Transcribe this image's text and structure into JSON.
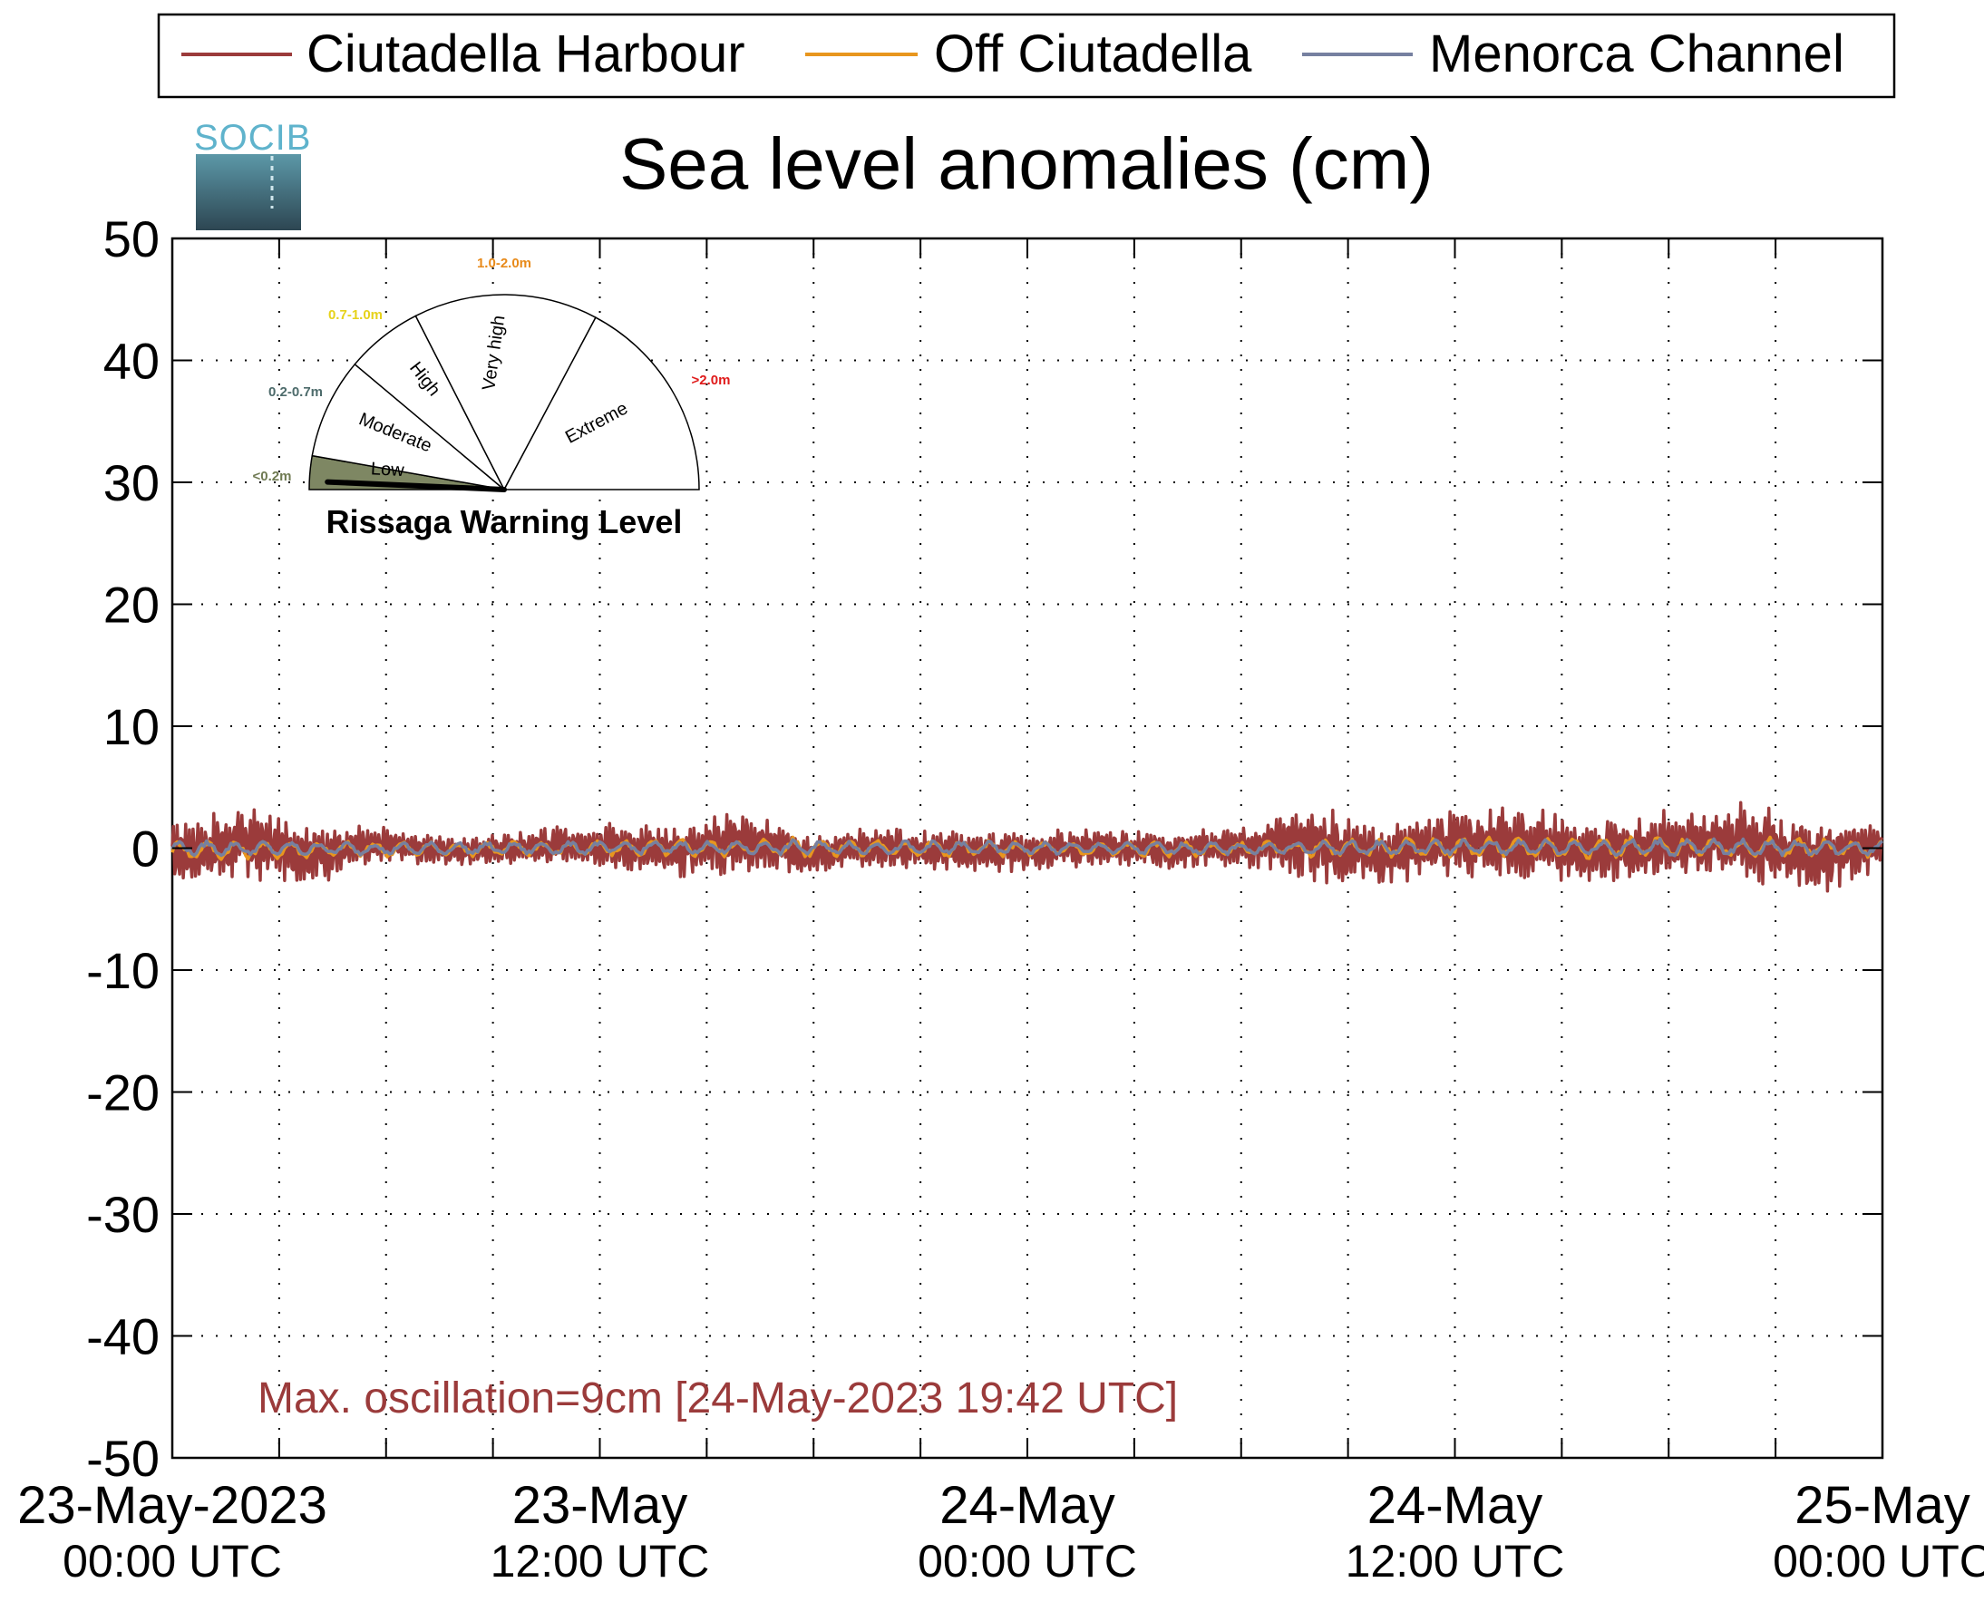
{
  "chart_data": {
    "type": "line",
    "title": "Sea level anomalies (cm)",
    "xlabel": "",
    "ylabel": "",
    "ylim": [
      -50,
      50
    ],
    "yticks": [
      50,
      40,
      30,
      20,
      10,
      0,
      -10,
      -20,
      -30,
      -40,
      -50
    ],
    "xlim": [
      "2023-05-23 00:00",
      "2023-05-25 00:00"
    ],
    "x_major_ticks": [
      {
        "x": "2023-05-23 00:00",
        "line1": "23-May-2023",
        "line2": "00:00 UTC"
      },
      {
        "x": "2023-05-23 12:00",
        "line1": "23-May",
        "line2": "12:00 UTC"
      },
      {
        "x": "2023-05-24 00:00",
        "line1": "24-May",
        "line2": "00:00 UTC"
      },
      {
        "x": "2023-05-24 12:00",
        "line1": "24-May",
        "line2": "12:00 UTC"
      },
      {
        "x": "2023-05-25 00:00",
        "line1": "25-May",
        "line2": "00:00 UTC"
      }
    ],
    "grid": true,
    "legend_position": "top",
    "series": [
      {
        "name": "Ciutadella Harbour",
        "color": "#9b3b3b",
        "x": [
          "2023-05-23 00:00",
          "2023-05-23 02:00",
          "2023-05-23 04:00",
          "2023-05-23 06:00",
          "2023-05-23 08:00",
          "2023-05-23 10:00",
          "2023-05-23 12:00",
          "2023-05-23 14:00",
          "2023-05-23 16:00",
          "2023-05-23 18:00",
          "2023-05-23 20:00",
          "2023-05-23 22:00",
          "2023-05-24 00:00",
          "2023-05-24 02:00",
          "2023-05-24 04:00",
          "2023-05-24 06:00",
          "2023-05-24 08:00",
          "2023-05-24 10:00",
          "2023-05-24 12:00",
          "2023-05-24 14:00",
          "2023-05-24 16:00",
          "2023-05-24 18:00",
          "2023-05-24 20:00",
          "2023-05-24 22:00",
          "2023-05-25 00:00"
        ],
        "values": [
          -3,
          3,
          -3,
          2,
          -2,
          1,
          2,
          -2,
          3,
          -3,
          1,
          -2,
          -2,
          1,
          -2,
          1,
          3,
          -4,
          3,
          3,
          -3,
          3,
          4,
          -5,
          1
        ],
        "amplitude": [
          2.2,
          2.8,
          2.4,
          1.4,
          1.2,
          1.2,
          1.8,
          2.0,
          2.4,
          1.4,
          1.6,
          1.6,
          1.6,
          1.4,
          1.4,
          1.6,
          3.0,
          2.2,
          2.6,
          2.8,
          2.4,
          2.6,
          3.0,
          3.0,
          1.8
        ]
      },
      {
        "name": "Off Ciutadella",
        "color": "#e8961e",
        "x": [
          "2023-05-23 00:00",
          "2023-05-23 06:00",
          "2023-05-23 12:00",
          "2023-05-23 18:00",
          "2023-05-24 00:00",
          "2023-05-24 06:00",
          "2023-05-24 12:00",
          "2023-05-24 18:00",
          "2023-05-25 00:00"
        ],
        "values": [
          -1,
          -0.5,
          0,
          0.5,
          -0.5,
          -0.5,
          0.5,
          0.5,
          0
        ],
        "amplitude": [
          0.8,
          0.6,
          0.6,
          0.8,
          0.6,
          0.6,
          0.8,
          0.9,
          0.7
        ]
      },
      {
        "name": "Menorca Channel",
        "color": "#7680a0",
        "x": [
          "2023-05-23 00:00",
          "2023-05-23 06:00",
          "2023-05-23 12:00",
          "2023-05-23 18:00",
          "2023-05-24 00:00",
          "2023-05-24 06:00",
          "2023-05-24 12:00",
          "2023-05-24 18:00",
          "2023-05-25 00:00"
        ],
        "values": [
          0,
          -0.3,
          0.2,
          0.3,
          0,
          -0.2,
          0.5,
          0.4,
          0.2
        ],
        "amplitude": [
          0.6,
          0.5,
          0.5,
          0.6,
          0.5,
          0.5,
          0.6,
          0.7,
          0.6
        ]
      }
    ],
    "annotation": "Max. oscillation=9cm [24-May-2023 19:42 UTC]",
    "annotation_color": "#9b3b3b"
  },
  "logo": {
    "text": "SOCIB",
    "color": "#5fb3cc"
  },
  "gauge": {
    "title": "Rissaga Warning Level",
    "needle_level": "Low",
    "needle_value": 0.09,
    "sectors": [
      {
        "label": "Low",
        "range": "<0.2m",
        "range_color": "#6f7a52",
        "fill": "#7e8763"
      },
      {
        "label": "Moderate",
        "range": "0.2-0.7m",
        "range_color": "#4d6b6b",
        "fill": "#ffffff"
      },
      {
        "label": "High",
        "range": "0.7-1.0m",
        "range_color": "#e6d21a",
        "fill": "#ffffff"
      },
      {
        "label": "Very high",
        "range": "1.0-2.0m",
        "range_color": "#e88a1a",
        "fill": "#ffffff"
      },
      {
        "label": "Extreme",
        "range": ">2.0m",
        "range_color": "#e01b1b",
        "fill": "#ffffff"
      }
    ]
  }
}
